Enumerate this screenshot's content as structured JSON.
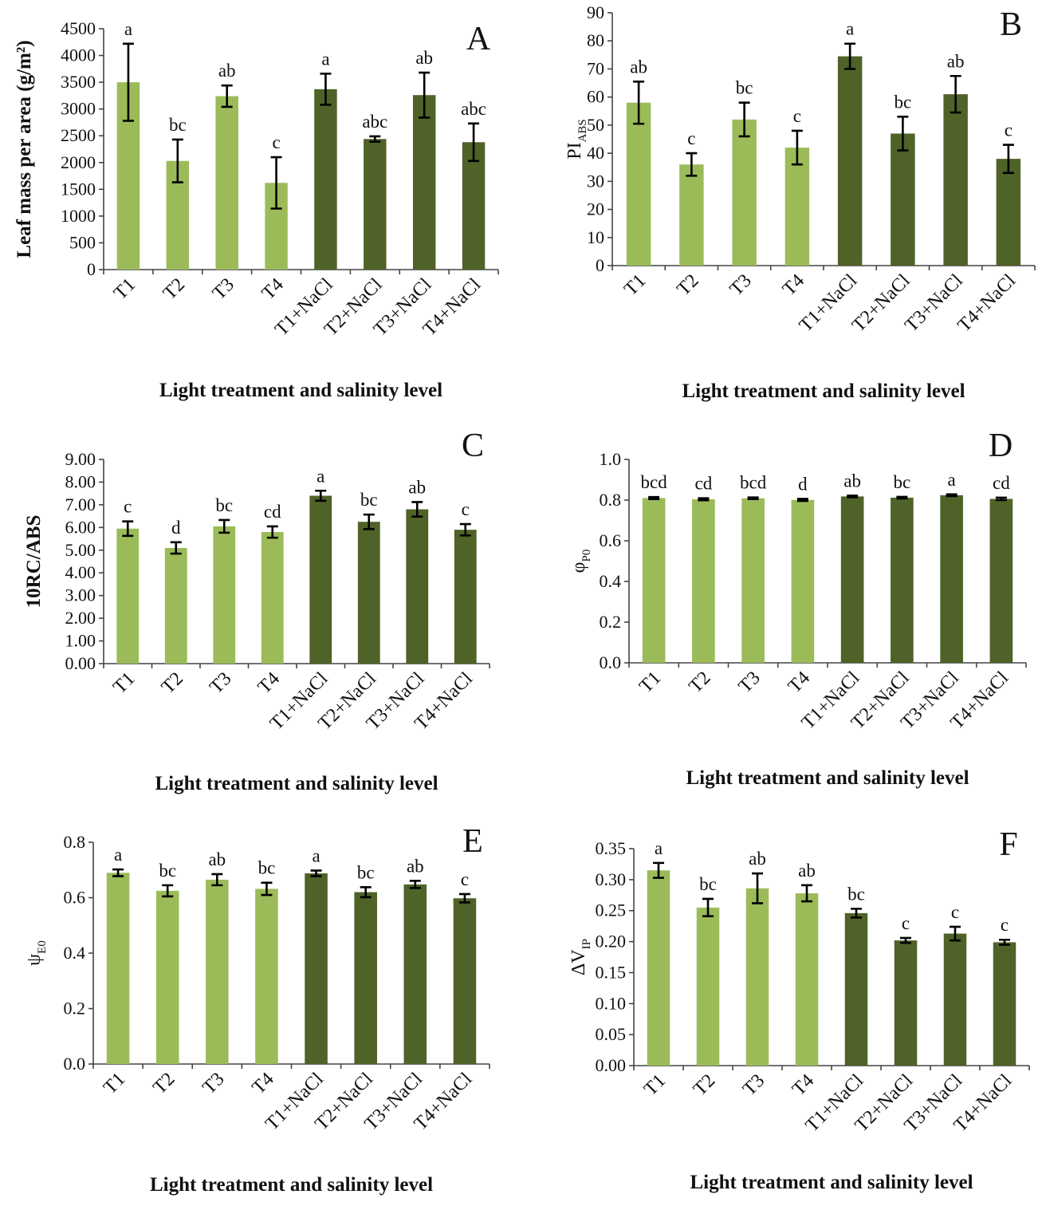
{
  "colors": {
    "light": "#9bbb59",
    "dark": "#4f6228"
  },
  "categories": [
    "T1",
    "T2",
    "T3",
    "T4",
    "T1+NaCl",
    "T2+NaCl",
    "T3+NaCl",
    "T4+NaCl"
  ],
  "chart_data": [
    {
      "type": "bar",
      "panel": "A",
      "title": "",
      "ylabel": "Leaf mass per area (g/m²)",
      "xlabel": "Light treatment and salinity level",
      "ylim": [
        0,
        4500
      ],
      "yticks": [
        "0",
        "500",
        "1000",
        "1500",
        "2000",
        "2500",
        "3000",
        "3500",
        "4000",
        "4500"
      ],
      "categories": [
        "T1",
        "T2",
        "T3",
        "T4",
        "T1+NaCl",
        "T2+NaCl",
        "T3+NaCl",
        "T4+NaCl"
      ],
      "values": [
        3500,
        2030,
        3240,
        1620,
        3370,
        2440,
        3260,
        2380
      ],
      "errors": [
        720,
        400,
        200,
        480,
        290,
        50,
        420,
        350
      ],
      "letters": [
        "a",
        "bc",
        "ab",
        "c",
        "a",
        "abc",
        "ab",
        "abc"
      ]
    },
    {
      "type": "bar",
      "panel": "B",
      "title": "",
      "ylabel": "PI",
      "ylabel_sub": "ABS",
      "xlabel": "Light treatment and salinity level",
      "ylim": [
        0,
        90
      ],
      "yticks": [
        "0",
        "10",
        "20",
        "30",
        "40",
        "50",
        "60",
        "70",
        "80",
        "90"
      ],
      "categories": [
        "T1",
        "T2",
        "T3",
        "T4",
        "T1+NaCl",
        "T2+NaCl",
        "T3+NaCl",
        "T4+NaCl"
      ],
      "values": [
        58,
        36,
        52,
        42,
        74.5,
        47,
        61,
        38
      ],
      "errors": [
        7.5,
        4,
        6,
        6,
        4.5,
        6,
        6.5,
        5
      ],
      "letters": [
        "ab",
        "c",
        "bc",
        "c",
        "a",
        "bc",
        "ab",
        "c"
      ]
    },
    {
      "type": "bar",
      "panel": "C",
      "title": "",
      "ylabel": "10RC/ABS",
      "xlabel": "Light treatment and salinity level",
      "ylim": [
        0,
        9
      ],
      "yticks": [
        "0.00",
        "1.00",
        "2.00",
        "3.00",
        "4.00",
        "5.00",
        "6.00",
        "7.00",
        "8.00",
        "9.00"
      ],
      "categories": [
        "T1",
        "T2",
        "T3",
        "T4",
        "T1+NaCl",
        "T2+NaCl",
        "T3+NaCl",
        "T4+NaCl"
      ],
      "values": [
        5.95,
        5.1,
        6.05,
        5.8,
        7.4,
        6.25,
        6.8,
        5.9
      ],
      "errors": [
        0.32,
        0.25,
        0.28,
        0.25,
        0.22,
        0.32,
        0.32,
        0.25
      ],
      "letters": [
        "c",
        "d",
        "bc",
        "cd",
        "a",
        "bc",
        "ab",
        "c"
      ]
    },
    {
      "type": "bar",
      "panel": "D",
      "title": "",
      "ylabel": "φ",
      "ylabel_sub": "P0",
      "xlabel": "Light treatment and salinity level",
      "ylim": [
        0,
        1.0
      ],
      "yticks": [
        "0.0",
        "0.2",
        "0.4",
        "0.6",
        "0.8",
        "1.0"
      ],
      "categories": [
        "T1",
        "T2",
        "T3",
        "T4",
        "T1+NaCl",
        "T2+NaCl",
        "T3+NaCl",
        "T4+NaCl"
      ],
      "values": [
        0.81,
        0.804,
        0.809,
        0.801,
        0.818,
        0.812,
        0.824,
        0.806
      ],
      "errors": [
        0.005,
        0.005,
        0.004,
        0.005,
        0.004,
        0.004,
        0.004,
        0.006
      ],
      "letters": [
        "bcd",
        "cd",
        "bcd",
        "d",
        "ab",
        "bc",
        "a",
        "cd"
      ]
    },
    {
      "type": "bar",
      "panel": "E",
      "title": "",
      "ylabel": "ψ",
      "ylabel_sub": "E0",
      "xlabel": "Light treatment and salinity level",
      "ylim": [
        0,
        0.8
      ],
      "yticks": [
        "0.0",
        "0.2",
        "0.4",
        "0.6",
        "0.8"
      ],
      "categories": [
        "T1",
        "T2",
        "T3",
        "T4",
        "T1+NaCl",
        "T2+NaCl",
        "T3+NaCl",
        "T4+NaCl"
      ],
      "values": [
        0.69,
        0.625,
        0.665,
        0.632,
        0.688,
        0.62,
        0.648,
        0.598
      ],
      "errors": [
        0.012,
        0.02,
        0.02,
        0.022,
        0.01,
        0.018,
        0.013,
        0.015
      ],
      "letters": [
        "a",
        "bc",
        "ab",
        "bc",
        "a",
        "bc",
        "ab",
        "c"
      ]
    },
    {
      "type": "bar",
      "panel": "F",
      "title": "",
      "ylabel": "ΔV",
      "ylabel_sub": "IP",
      "xlabel": "Light treatment and salinity level",
      "ylim": [
        0,
        0.35
      ],
      "yticks": [
        "0.00",
        "0.05",
        "0.10",
        "0.15",
        "0.20",
        "0.25",
        "0.30",
        "0.35"
      ],
      "categories": [
        "T1",
        "T2",
        "T3",
        "T4",
        "T1+NaCl",
        "T2+NaCl",
        "T3+NaCl",
        "T4+NaCl"
      ],
      "values": [
        0.315,
        0.255,
        0.286,
        0.278,
        0.246,
        0.202,
        0.213,
        0.199
      ],
      "errors": [
        0.012,
        0.014,
        0.024,
        0.013,
        0.007,
        0.004,
        0.011,
        0.004
      ],
      "letters": [
        "a",
        "bc",
        "ab",
        "ab",
        "bc",
        "c",
        "c",
        "c"
      ]
    }
  ]
}
